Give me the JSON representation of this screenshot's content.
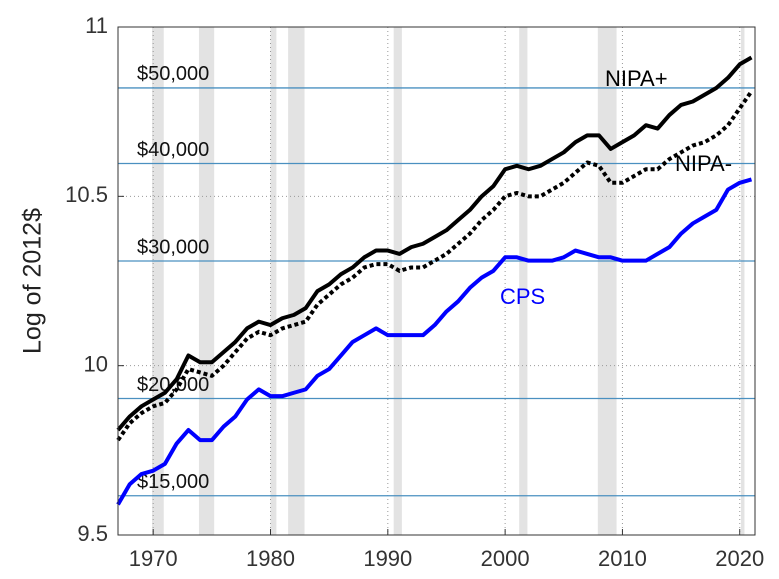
{
  "chart_data": {
    "type": "line",
    "y_label": "Log of 2012$",
    "x": [
      1967,
      1968,
      1969,
      1970,
      1971,
      1972,
      1973,
      1974,
      1975,
      1976,
      1977,
      1978,
      1979,
      1980,
      1981,
      1982,
      1983,
      1984,
      1985,
      1986,
      1987,
      1988,
      1989,
      1990,
      1991,
      1992,
      1993,
      1994,
      1995,
      1996,
      1997,
      1998,
      1999,
      2000,
      2001,
      2002,
      2003,
      2004,
      2005,
      2006,
      2007,
      2008,
      2009,
      2010,
      2011,
      2012,
      2013,
      2014,
      2015,
      2016,
      2017,
      2018,
      2019,
      2020,
      2021
    ],
    "series": [
      {
        "name": "NIPA+",
        "color": "#000000",
        "dash": "solid",
        "values": [
          9.81,
          9.85,
          9.88,
          9.9,
          9.92,
          9.96,
          10.03,
          10.01,
          10.01,
          10.04,
          10.07,
          10.11,
          10.13,
          10.12,
          10.14,
          10.15,
          10.17,
          10.22,
          10.24,
          10.27,
          10.29,
          10.32,
          10.34,
          10.34,
          10.33,
          10.35,
          10.36,
          10.38,
          10.4,
          10.43,
          10.46,
          10.5,
          10.53,
          10.58,
          10.59,
          10.58,
          10.59,
          10.61,
          10.63,
          10.66,
          10.68,
          10.68,
          10.64,
          10.66,
          10.68,
          10.71,
          10.7,
          10.74,
          10.77,
          10.78,
          10.8,
          10.82,
          10.85,
          10.89,
          10.91
        ]
      },
      {
        "name": "NIPA-",
        "color": "#000000",
        "dash": "dotted",
        "values": [
          9.78,
          9.83,
          9.86,
          9.88,
          9.89,
          9.93,
          9.99,
          9.98,
          9.97,
          10.0,
          10.04,
          10.08,
          10.1,
          10.09,
          10.11,
          10.12,
          10.13,
          10.18,
          10.21,
          10.24,
          10.26,
          10.29,
          10.3,
          10.3,
          10.28,
          10.29,
          10.29,
          10.31,
          10.33,
          10.36,
          10.39,
          10.43,
          10.46,
          10.5,
          10.51,
          10.5,
          10.5,
          10.52,
          10.54,
          10.57,
          10.6,
          10.59,
          10.54,
          10.54,
          10.56,
          10.58,
          10.58,
          10.61,
          10.63,
          10.65,
          10.66,
          10.68,
          10.71,
          10.76,
          10.81
        ]
      },
      {
        "name": "CPS",
        "color": "#0000ff",
        "dash": "solid",
        "values": [
          9.59,
          9.65,
          9.68,
          9.69,
          9.71,
          9.77,
          9.81,
          9.78,
          9.78,
          9.82,
          9.85,
          9.9,
          9.93,
          9.91,
          9.91,
          9.92,
          9.93,
          9.97,
          9.99,
          10.03,
          10.07,
          10.09,
          10.11,
          10.09,
          10.09,
          10.09,
          10.09,
          10.12,
          10.16,
          10.19,
          10.23,
          10.26,
          10.28,
          10.32,
          10.32,
          10.31,
          10.31,
          10.31,
          10.32,
          10.34,
          10.33,
          10.32,
          10.32,
          10.31,
          10.31,
          10.31,
          10.33,
          10.35,
          10.39,
          10.42,
          10.44,
          10.46,
          10.52,
          10.54,
          10.55
        ]
      }
    ],
    "recessions": [
      [
        1969.9,
        1970.9
      ],
      [
        1973.9,
        1975.2
      ],
      [
        1980.0,
        1980.5
      ],
      [
        1981.5,
        1982.9
      ],
      [
        1990.5,
        1991.2
      ],
      [
        2001.2,
        2001.9
      ],
      [
        2007.9,
        2009.5
      ],
      [
        2020.1,
        2020.4
      ]
    ],
    "recession_color": "#e3e3e3",
    "reference_lines": [
      {
        "value": 10.82,
        "label": "$50,000"
      },
      {
        "value": 10.597,
        "label": "$40,000"
      },
      {
        "value": 10.309,
        "label": "$30,000"
      },
      {
        "value": 9.903,
        "label": "$20,000"
      },
      {
        "value": 9.616,
        "label": "$15,000"
      }
    ],
    "reference_color": "#4a90c0",
    "xlim": [
      1967,
      2021.3
    ],
    "ylim": [
      9.5,
      11
    ],
    "xticks": [
      1970,
      1980,
      1990,
      2000,
      2010,
      2020
    ],
    "yticks": [
      9.5,
      10,
      10.5,
      11
    ],
    "grid": true
  }
}
